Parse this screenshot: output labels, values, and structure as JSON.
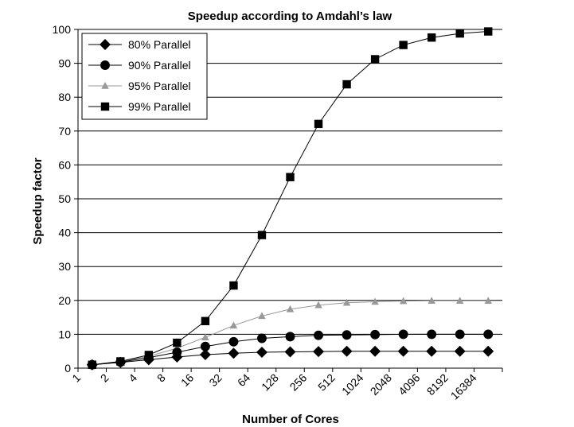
{
  "chart_data": {
    "type": "line",
    "title": "Speedup according to Amdahl’s law",
    "xlabel": "Number of Cores",
    "ylabel": "Speedup factor",
    "ylim": [
      0,
      100
    ],
    "yticks": [
      0,
      10,
      20,
      30,
      40,
      50,
      60,
      70,
      80,
      90,
      100
    ],
    "x_tick_labels": [
      "1",
      "2",
      "4",
      "8",
      "16",
      "32",
      "64",
      "128",
      "256",
      "512",
      "1024",
      "2048",
      "4096",
      "8192",
      "16384"
    ],
    "x": [
      1,
      2,
      4,
      8,
      16,
      32,
      64,
      128,
      256,
      512,
      1024,
      2048,
      4096,
      8192,
      16384
    ],
    "grid": "horizontal",
    "legend_position": "top-left",
    "series": [
      {
        "name": "80% Parallel",
        "marker": "diamond",
        "color": "#000000",
        "values": [
          1.0,
          1.7,
          2.5,
          3.3,
          4.0,
          4.4,
          4.7,
          4.8,
          4.9,
          5.0,
          5.0,
          5.0,
          5.0,
          5.0,
          5.0
        ]
      },
      {
        "name": "90% Parallel",
        "marker": "circle",
        "color": "#000000",
        "values": [
          1.0,
          1.8,
          3.1,
          4.7,
          6.4,
          7.8,
          8.8,
          9.3,
          9.7,
          9.8,
          9.9,
          10.0,
          10.0,
          10.0,
          10.0
        ]
      },
      {
        "name": "95% Parallel",
        "marker": "triangle",
        "color": "#999999",
        "values": [
          1.0,
          1.9,
          3.5,
          5.9,
          9.1,
          12.6,
          15.4,
          17.4,
          18.6,
          19.3,
          19.6,
          19.8,
          19.9,
          19.9,
          19.9
        ]
      },
      {
        "name": "99% Parallel",
        "marker": "square",
        "color": "#000000",
        "values": [
          1.0,
          2.0,
          3.9,
          7.5,
          13.9,
          24.4,
          39.3,
          56.4,
          72.1,
          83.8,
          91.2,
          95.4,
          97.6,
          98.8,
          99.4
        ]
      }
    ]
  }
}
